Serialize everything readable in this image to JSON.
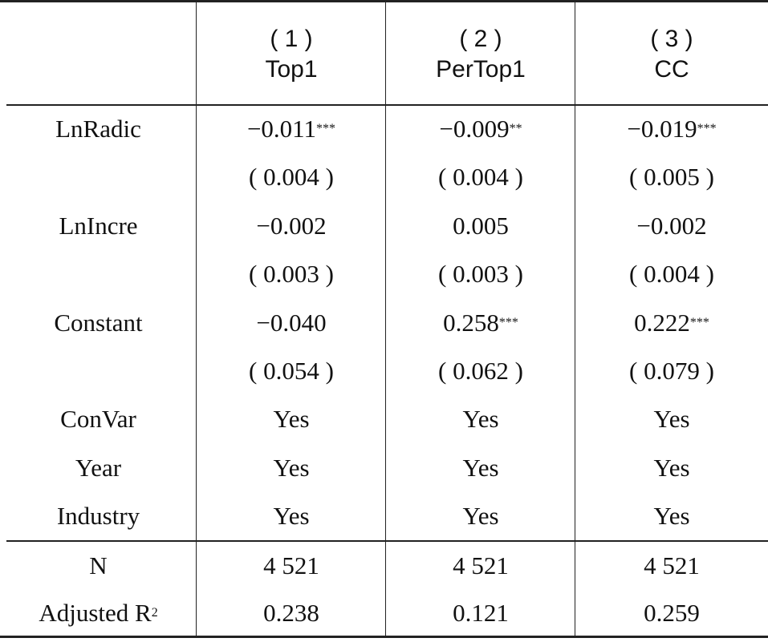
{
  "table": {
    "columns": [
      {
        "number": "( 1 )",
        "name": "Top1"
      },
      {
        "number": "( 2 )",
        "name": "PerTop1"
      },
      {
        "number": "( 3 )",
        "name": "CC"
      }
    ],
    "rows": [
      {
        "label": "LnRadic",
        "cells": [
          {
            "text": "−0.011",
            "stars": "***"
          },
          {
            "text": "−0.009",
            "stars": "**"
          },
          {
            "text": "−0.019",
            "stars": "***"
          }
        ]
      },
      {
        "label": null,
        "cells": [
          {
            "text": "( 0.004 )"
          },
          {
            "text": "( 0.004 )"
          },
          {
            "text": "( 0.005 )"
          }
        ]
      },
      {
        "label": "LnIncre",
        "cells": [
          {
            "text": "−0.002"
          },
          {
            "text": "0.005"
          },
          {
            "text": "−0.002"
          }
        ]
      },
      {
        "label": null,
        "cells": [
          {
            "text": "( 0.003 )"
          },
          {
            "text": "( 0.003 )"
          },
          {
            "text": "( 0.004 )"
          }
        ]
      },
      {
        "label": "Constant",
        "cells": [
          {
            "text": "−0.040"
          },
          {
            "text": "0.258",
            "stars": "***"
          },
          {
            "text": "0.222",
            "stars": "***"
          }
        ]
      },
      {
        "label": null,
        "cells": [
          {
            "text": "( 0.054 )"
          },
          {
            "text": "( 0.062 )"
          },
          {
            "text": "( 0.079 )"
          }
        ]
      },
      {
        "label": "ConVar",
        "cells": [
          {
            "text": "Yes"
          },
          {
            "text": "Yes"
          },
          {
            "text": "Yes"
          }
        ]
      },
      {
        "label": "Year",
        "cells": [
          {
            "text": "Yes"
          },
          {
            "text": "Yes"
          },
          {
            "text": "Yes"
          }
        ]
      },
      {
        "label": "Industry",
        "cells": [
          {
            "text": "Yes"
          },
          {
            "text": "Yes"
          },
          {
            "text": "Yes"
          }
        ]
      }
    ],
    "footer_rows": [
      {
        "label": "N",
        "cells": [
          {
            "text": "4 521"
          },
          {
            "text": "4 521"
          },
          {
            "text": "4 521"
          }
        ]
      },
      {
        "label": "Adjusted R",
        "label_superscript": "2",
        "cells": [
          {
            "text": "0.238"
          },
          {
            "text": "0.121"
          },
          {
            "text": "0.259"
          }
        ]
      }
    ]
  }
}
